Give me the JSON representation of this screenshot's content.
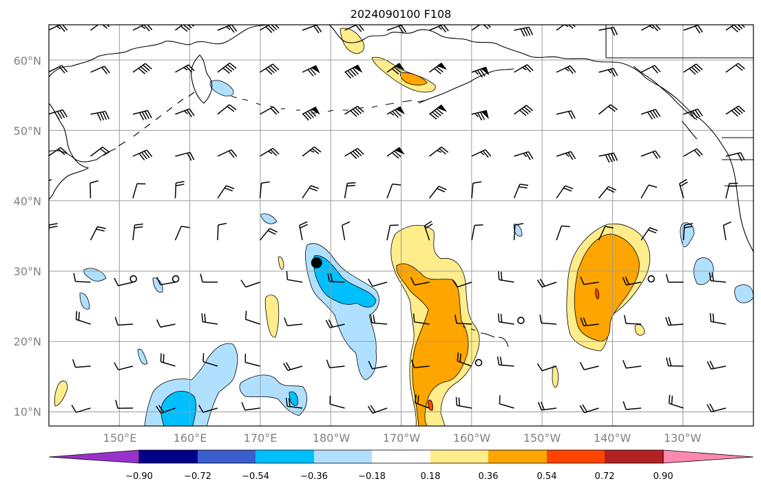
{
  "title": "2024090100 F108",
  "axes": {
    "lon_labels": [
      "150°E",
      "160°E",
      "170°E",
      "180°W",
      "170°W",
      "160°W",
      "150°W",
      "140°W",
      "130°W"
    ],
    "lat_labels": [
      "60°N",
      "50°N",
      "40°N",
      "30°N",
      "20°N",
      "10°N"
    ],
    "lon_range": [
      140,
      240
    ],
    "lat_range": [
      8,
      65
    ]
  },
  "colorbar": {
    "tick_labels": [
      "−0.90",
      "−0.72",
      "−0.54",
      "−0.36",
      "−0.18",
      "0.18",
      "0.36",
      "0.54",
      "0.72",
      "0.90"
    ],
    "colors": [
      "#9932cc",
      "#00008b",
      "#3a5fcd",
      "#00bfff",
      "#b0e0ff",
      "#ffffff",
      "#ffec8b",
      "#ffa500",
      "#ff4500",
      "#b22222",
      "#ff88b0"
    ]
  },
  "shading_colors": {
    "lightblue": "#b0e0ff",
    "blue": "#00bfff",
    "yellow": "#ffec8b",
    "orange": "#ffa500",
    "red": "#ff4500"
  },
  "markers": [
    {
      "symbol": "filled-circle",
      "lon": 178.0,
      "lat": 31.2
    },
    {
      "symbol": "open-circle",
      "lon": 152.0,
      "lat": 28.9
    },
    {
      "symbol": "open-circle",
      "lon": 158.0,
      "lat": 28.9
    },
    {
      "symbol": "open-circle",
      "lon": 207.0,
      "lat": 23.0
    },
    {
      "symbol": "open-circle",
      "lon": 201.0,
      "lat": 17.0
    },
    {
      "symbol": "open-circle",
      "lon": 225.5,
      "lat": 28.9
    }
  ]
}
